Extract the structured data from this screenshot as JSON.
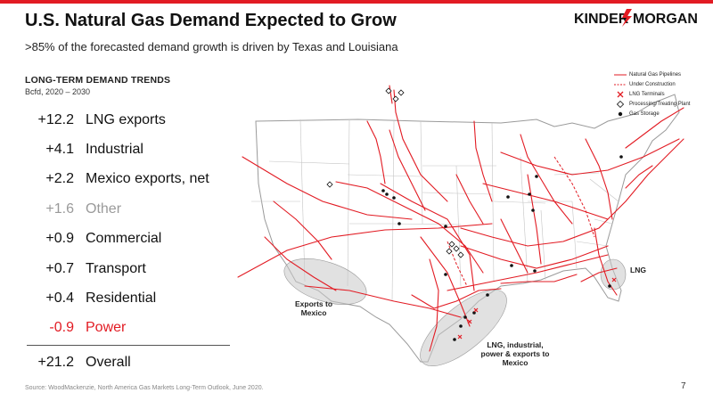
{
  "header": {
    "title": "U.S. Natural Gas Demand Expected to Grow",
    "subtitle": ">85% of the forecasted demand growth is driven by Texas and Louisiana",
    "logo_text_left": "KINDER",
    "logo_text_right": "MORGAN",
    "brand_color": "#e21b23"
  },
  "demand": {
    "title": "LONG-TERM DEMAND TRENDS",
    "subtitle": "Bcfd, 2020 – 2030",
    "items": [
      {
        "value": "+12.2",
        "label": "LNG exports"
      },
      {
        "value": "+4.1",
        "label": "Industrial"
      },
      {
        "value": "+2.2",
        "label": "Mexico exports, net"
      },
      {
        "value": "+1.6",
        "label": "Other"
      },
      {
        "value": "+0.9",
        "label": "Commercial"
      },
      {
        "value": "+0.7",
        "label": "Transport"
      },
      {
        "value": "+0.4",
        "label": "Residential"
      },
      {
        "value": "-0.9",
        "label": "Power"
      }
    ],
    "total": {
      "value": "+21.2",
      "label": "Overall"
    }
  },
  "legend": [
    {
      "label": "Natural Gas Pipelines",
      "icon": "solid-line"
    },
    {
      "label": "Under Construction",
      "icon": "dashed-line"
    },
    {
      "label": "LNG Terminals",
      "icon": "lng-terminal"
    },
    {
      "label": "Processing/Treating Plant",
      "icon": "diamond"
    },
    {
      "label": "Gas Storage",
      "icon": "dot"
    }
  ],
  "callouts": {
    "mexico": "Exports to\nMexico",
    "gulf": "LNG, industrial,\npower & exports to\nMexico",
    "lng": "LNG"
  },
  "colors": {
    "pipeline": "#e21b23",
    "borders": "#bdbdbd",
    "highlight": "#c8c8c8"
  },
  "footer": {
    "source": "Source:  WoodMackenzie, North America Gas Markets Long-Term Outlook, June 2020.",
    "page": "7"
  }
}
